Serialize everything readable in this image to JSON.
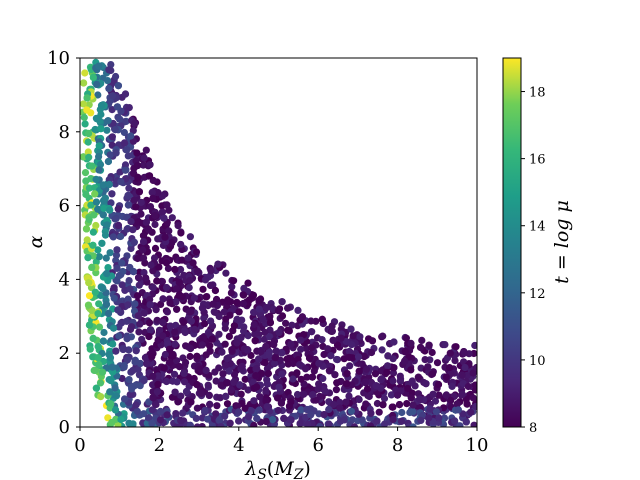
{
  "chart_data": {
    "type": "scatter",
    "title": "",
    "xlabel": "λ_S(M_Z)",
    "ylabel": "α",
    "xlim": [
      0,
      10
    ],
    "ylim": [
      0,
      10
    ],
    "x_ticks": [
      "0",
      "2",
      "4",
      "6",
      "8",
      "10"
    ],
    "y_ticks": [
      "0",
      "2",
      "4",
      "6",
      "8",
      "10"
    ],
    "grid": false,
    "colorbar": {
      "label": "t = log μ",
      "range": [
        8,
        19
      ],
      "ticks": [
        "8",
        "10",
        "12",
        "14",
        "16",
        "18"
      ],
      "colormap": "viridis"
    },
    "region": {
      "description": "points fill region between lower-left edge and an upper boundary curve",
      "upper_boundary": [
        [
          0.6,
          10
        ],
        [
          1.0,
          9.4
        ],
        [
          1.5,
          8.0
        ],
        [
          2.0,
          6.6
        ],
        [
          2.5,
          5.5
        ],
        [
          3.0,
          4.8
        ],
        [
          4.0,
          4.0
        ],
        [
          5.0,
          3.3
        ],
        [
          6.0,
          3.0
        ],
        [
          7.0,
          2.6
        ],
        [
          8.0,
          2.4
        ],
        [
          9.0,
          2.2
        ],
        [
          10.0,
          2.1
        ]
      ],
      "high_t_edge": [
        [
          0.1,
          10
        ],
        [
          0.12,
          8
        ],
        [
          0.15,
          6
        ],
        [
          0.2,
          4
        ],
        [
          0.3,
          2
        ],
        [
          0.5,
          0.8
        ],
        [
          0.8,
          0.1
        ]
      ],
      "t_range_along_left_edge": [
        14,
        19
      ],
      "t_typical_interior": 8.5
    },
    "points_estimated": 2600
  }
}
